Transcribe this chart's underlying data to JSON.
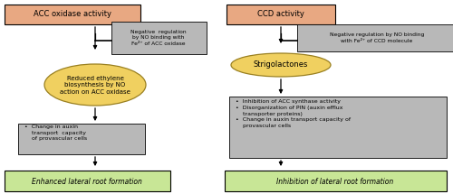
{
  "bg_color": "#ffffff",
  "salmon_color": "#E8A882",
  "gray_box_color": "#B8B8B8",
  "yellow_ellipse_color": "#F0D060",
  "green_bottom_color": "#C8E696",
  "left_top_label": "ACC oxidase activity",
  "right_top_label": "CCD activity",
  "neg_reg_left": "Negative  regulation\nby NO binding with\nFe²⁺ of ACC oxidase",
  "neg_reg_right": "Negative regulation by NO binding\nwith Fe²⁺ of CCD molecule",
  "ellipse_left": "Reduced ethylene\nbiosynthesis by NO\naction on ACC oxidase",
  "ellipse_right": "Strigolactones",
  "bullet_left": "•  Change in auxin\n    transport  capacity\n    of provascular cells",
  "bullet_right": "•  Inhibition of ACC synthase activity\n•  Disorganization of PIN (auxin efflux\n    transporter proteins)\n•  Change in auxin transport capacity of\n    provascular cells",
  "bottom_left": "Enhanced lateral root formation",
  "bottom_right": "Inhibition of lateral root formation"
}
